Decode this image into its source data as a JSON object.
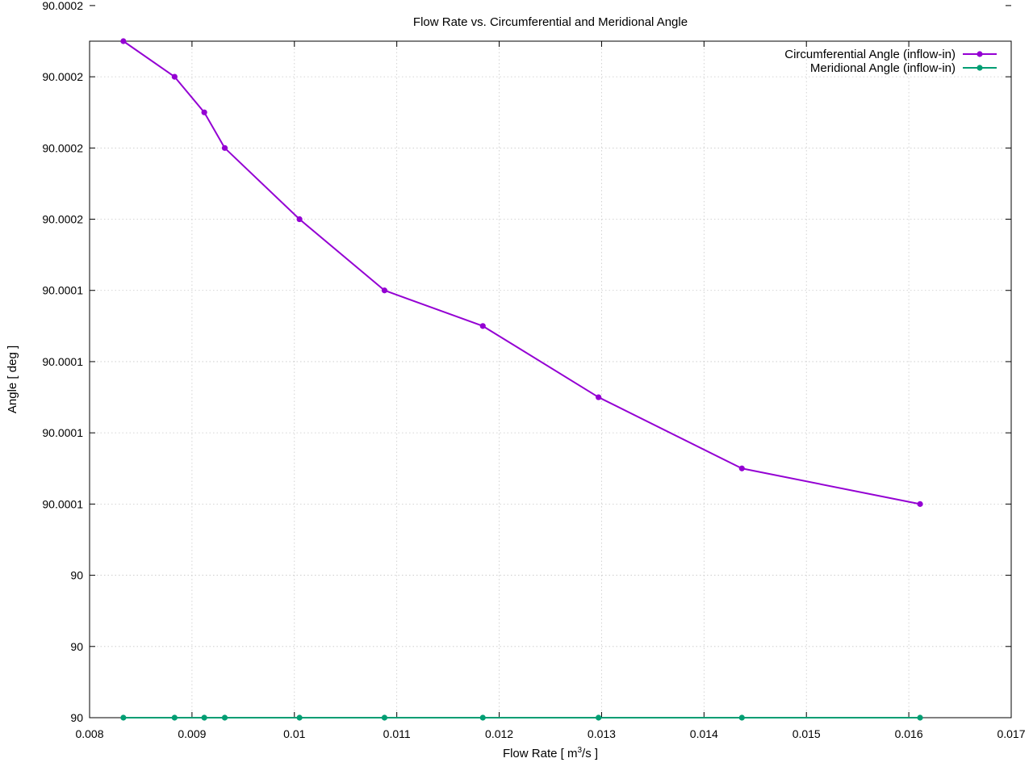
{
  "chart_data": {
    "type": "line",
    "title": "Flow Rate vs. Circumferential and Meridional Angle",
    "xlabel_prefix": "Flow Rate [ m",
    "xlabel_sup": "3",
    "xlabel_suffix": "/s ]",
    "ylabel": "Angle [ deg ]",
    "xlim": [
      0.008,
      0.017
    ],
    "ylim": [
      90.0,
      90.00019
    ],
    "x_ticks": [
      0.008,
      0.009,
      0.01,
      0.011,
      0.012,
      0.013,
      0.014,
      0.015,
      0.016,
      0.017
    ],
    "x_tick_labels": [
      "0.008",
      "0.009",
      "0.01",
      "0.011",
      "0.012",
      "0.013",
      "0.014",
      "0.015",
      "0.016",
      "0.017"
    ],
    "y_ticks": [
      90.0,
      90.00002,
      90.00004,
      90.00006,
      90.00008,
      90.0001,
      90.00012,
      90.00014,
      90.00016,
      90.00018,
      90.0002
    ],
    "y_tick_labels": [
      "90",
      "90",
      "90",
      "90.0001",
      "90.0001",
      "90.0001",
      "90.0001",
      "90.0002",
      "90.0002",
      "90.0002",
      "90.0002"
    ],
    "grid": true,
    "legend_position": "top-right",
    "series": [
      {
        "name": "Circumferential Angle (inflow-in)",
        "color": "#9400d3",
        "x": [
          0.00833,
          0.00883,
          0.00912,
          0.00932,
          0.01005,
          0.01088,
          0.01184,
          0.01297,
          0.01437,
          0.01611
        ],
        "y": [
          90.00019,
          90.00018,
          90.00017,
          90.00016,
          90.00014,
          90.00012,
          90.00011,
          90.00009,
          90.00007,
          90.00006
        ]
      },
      {
        "name": "Meridional Angle (inflow-in)",
        "color": "#009e73",
        "x": [
          0.00833,
          0.00883,
          0.00912,
          0.00932,
          0.01005,
          0.01088,
          0.01184,
          0.01297,
          0.01437,
          0.01611
        ],
        "y": [
          90.0,
          90.0,
          90.0,
          90.0,
          90.0,
          90.0,
          90.0,
          90.0,
          90.0,
          90.0
        ]
      }
    ]
  }
}
